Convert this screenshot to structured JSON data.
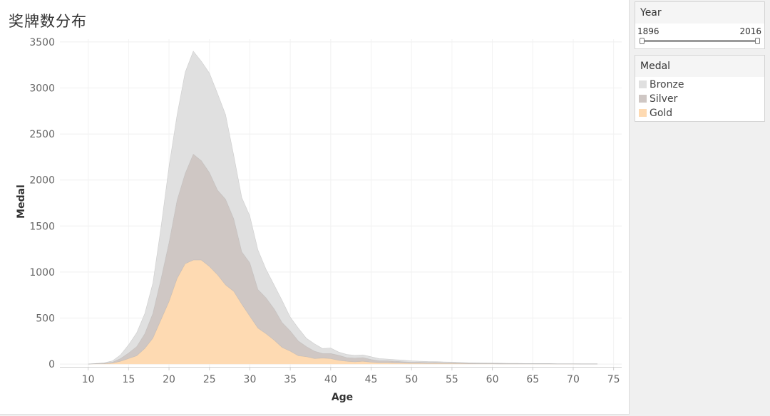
{
  "title": "奖牌数分布",
  "filter": {
    "title": "Year",
    "min_label": "1896",
    "max_label": "2016"
  },
  "legend": {
    "title": "Medal",
    "items": [
      {
        "label": "Bronze",
        "color": "#e0e0e0"
      },
      {
        "label": "Silver",
        "color": "#cfc7c4"
      },
      {
        "label": "Gold",
        "color": "#fedab2"
      }
    ]
  },
  "chart_data": {
    "type": "area",
    "stacked": true,
    "title": "",
    "xlabel": "Age",
    "ylabel": "Medal",
    "xlim": [
      6.5,
      76
    ],
    "ylim": [
      -30,
      3530
    ],
    "xticks": [
      10,
      15,
      20,
      25,
      30,
      35,
      40,
      45,
      50,
      55,
      60,
      65,
      70,
      75
    ],
    "yticks": [
      0,
      500,
      1000,
      1500,
      2000,
      2500,
      3000,
      3500
    ],
    "grid": true,
    "legend_position": "right",
    "series": [
      {
        "name": "Gold",
        "color": "#fedab2",
        "points": [
          [
            10,
            0
          ],
          [
            11,
            3
          ],
          [
            12,
            4
          ],
          [
            13,
            10
          ],
          [
            14,
            30
          ],
          [
            15,
            60
          ],
          [
            16,
            90
          ],
          [
            17,
            170
          ],
          [
            18,
            280
          ],
          [
            19,
            480
          ],
          [
            20,
            680
          ],
          [
            21,
            930
          ],
          [
            22,
            1090
          ],
          [
            23,
            1130
          ],
          [
            24,
            1130
          ],
          [
            25,
            1060
          ],
          [
            26,
            970
          ],
          [
            27,
            860
          ],
          [
            28,
            790
          ],
          [
            29,
            650
          ],
          [
            30,
            520
          ],
          [
            31,
            390
          ],
          [
            32,
            330
          ],
          [
            33,
            260
          ],
          [
            34,
            180
          ],
          [
            35,
            140
          ],
          [
            36,
            90
          ],
          [
            37,
            80
          ],
          [
            38,
            60
          ],
          [
            39,
            65
          ],
          [
            40,
            60
          ],
          [
            41,
            40
          ],
          [
            42,
            30
          ],
          [
            43,
            25
          ],
          [
            44,
            30
          ],
          [
            45,
            20
          ],
          [
            46,
            15
          ],
          [
            47,
            15
          ],
          [
            48,
            12
          ],
          [
            49,
            10
          ],
          [
            50,
            8
          ],
          [
            51,
            8
          ],
          [
            52,
            7
          ],
          [
            53,
            8
          ],
          [
            54,
            6
          ],
          [
            55,
            6
          ],
          [
            56,
            5
          ],
          [
            57,
            4
          ],
          [
            58,
            3
          ],
          [
            59,
            3
          ],
          [
            60,
            3
          ],
          [
            61,
            2
          ],
          [
            62,
            2
          ],
          [
            63,
            2
          ],
          [
            64,
            1
          ],
          [
            65,
            1
          ],
          [
            66,
            1
          ],
          [
            67,
            1
          ],
          [
            68,
            1
          ],
          [
            69,
            1
          ],
          [
            70,
            1
          ],
          [
            71,
            0
          ],
          [
            72,
            0
          ],
          [
            73,
            0
          ]
        ]
      },
      {
        "name": "Silver",
        "color": "#cfc7c4",
        "points": [
          [
            10,
            0
          ],
          [
            11,
            2
          ],
          [
            12,
            5
          ],
          [
            13,
            10
          ],
          [
            14,
            30
          ],
          [
            15,
            60
          ],
          [
            16,
            100
          ],
          [
            17,
            160
          ],
          [
            18,
            270
          ],
          [
            19,
            440
          ],
          [
            20,
            640
          ],
          [
            21,
            850
          ],
          [
            22,
            980
          ],
          [
            23,
            1150
          ],
          [
            24,
            1080
          ],
          [
            25,
            1020
          ],
          [
            26,
            920
          ],
          [
            27,
            930
          ],
          [
            28,
            790
          ],
          [
            29,
            570
          ],
          [
            30,
            580
          ],
          [
            31,
            420
          ],
          [
            32,
            390
          ],
          [
            33,
            340
          ],
          [
            34,
            270
          ],
          [
            35,
            220
          ],
          [
            36,
            160
          ],
          [
            37,
            110
          ],
          [
            38,
            80
          ],
          [
            39,
            50
          ],
          [
            40,
            55
          ],
          [
            41,
            55
          ],
          [
            42,
            40
          ],
          [
            43,
            40
          ],
          [
            44,
            40
          ],
          [
            45,
            30
          ],
          [
            46,
            20
          ],
          [
            47,
            20
          ],
          [
            48,
            18
          ],
          [
            49,
            15
          ],
          [
            50,
            12
          ],
          [
            51,
            12
          ],
          [
            52,
            10
          ],
          [
            53,
            10
          ],
          [
            54,
            8
          ],
          [
            55,
            8
          ],
          [
            56,
            6
          ],
          [
            57,
            5
          ],
          [
            58,
            5
          ],
          [
            59,
            4
          ],
          [
            60,
            4
          ],
          [
            61,
            4
          ],
          [
            62,
            3
          ],
          [
            63,
            3
          ],
          [
            64,
            2
          ],
          [
            65,
            2
          ],
          [
            66,
            2
          ],
          [
            67,
            2
          ],
          [
            68,
            1
          ],
          [
            69,
            1
          ],
          [
            70,
            1
          ],
          [
            71,
            1
          ],
          [
            72,
            1
          ],
          [
            73,
            1
          ]
        ]
      },
      {
        "name": "Bronze",
        "color": "#e0e0e0",
        "points": [
          [
            10,
            0
          ],
          [
            11,
            2
          ],
          [
            12,
            6
          ],
          [
            13,
            15
          ],
          [
            14,
            40
          ],
          [
            15,
            90
          ],
          [
            16,
            150
          ],
          [
            17,
            220
          ],
          [
            18,
            330
          ],
          [
            19,
            560
          ],
          [
            20,
            830
          ],
          [
            21,
            930
          ],
          [
            22,
            1100
          ],
          [
            23,
            1120
          ],
          [
            24,
            1080
          ],
          [
            25,
            1080
          ],
          [
            26,
            1050
          ],
          [
            27,
            920
          ],
          [
            28,
            690
          ],
          [
            29,
            590
          ],
          [
            30,
            510
          ],
          [
            31,
            430
          ],
          [
            32,
            310
          ],
          [
            33,
            260
          ],
          [
            34,
            240
          ],
          [
            35,
            150
          ],
          [
            36,
            140
          ],
          [
            37,
            90
          ],
          [
            38,
            80
          ],
          [
            39,
            55
          ],
          [
            40,
            60
          ],
          [
            41,
            35
          ],
          [
            42,
            35
          ],
          [
            43,
            30
          ],
          [
            44,
            30
          ],
          [
            45,
            30
          ],
          [
            46,
            25
          ],
          [
            47,
            20
          ],
          [
            48,
            18
          ],
          [
            49,
            18
          ],
          [
            50,
            15
          ],
          [
            51,
            12
          ],
          [
            52,
            12
          ],
          [
            53,
            10
          ],
          [
            54,
            10
          ],
          [
            55,
            8
          ],
          [
            56,
            8
          ],
          [
            57,
            6
          ],
          [
            58,
            5
          ],
          [
            59,
            5
          ],
          [
            60,
            4
          ],
          [
            61,
            4
          ],
          [
            62,
            4
          ],
          [
            63,
            4
          ],
          [
            64,
            3
          ],
          [
            65,
            3
          ],
          [
            66,
            3
          ],
          [
            67,
            3
          ],
          [
            68,
            3
          ],
          [
            69,
            3
          ],
          [
            70,
            3
          ],
          [
            71,
            2
          ],
          [
            72,
            2
          ],
          [
            73,
            2
          ]
        ]
      }
    ]
  }
}
